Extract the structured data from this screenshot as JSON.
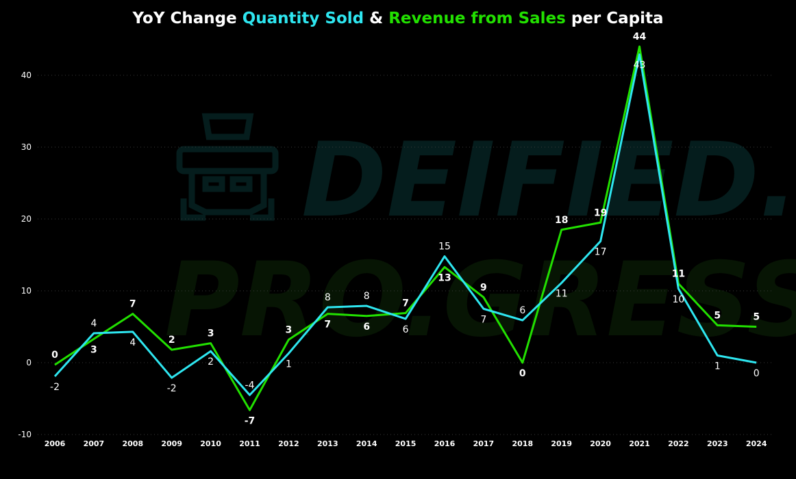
{
  "title": {
    "prefix": "YoY Change ",
    "part1": "Quantity Sold",
    "mid": " & ",
    "part2": "Revenue from Sales",
    "suffix": " per Capita"
  },
  "watermark": {
    "line1": "DEIFIED.",
    "line2": "PRO.GRESS"
  },
  "colors": {
    "quantity": "#2ee6f0",
    "revenue": "#22e000",
    "background": "#000000",
    "text": "#ffffff"
  },
  "chart_data": {
    "type": "line",
    "categories": [
      "2006",
      "2007",
      "2008",
      "2009",
      "2010",
      "2011",
      "2012",
      "2013",
      "2014",
      "2015",
      "2016",
      "2017",
      "2018",
      "2019",
      "2020",
      "2021",
      "2022",
      "2023",
      "2024"
    ],
    "ylim": [
      -10,
      45
    ],
    "yticks": [
      -10,
      0,
      10,
      20,
      30,
      40
    ],
    "grid": true,
    "series": [
      {
        "name": "Quantity Sold",
        "values": [
          -1.9,
          4.1,
          4.3,
          -2.1,
          1.6,
          -4.5,
          1.3,
          7.7,
          7.9,
          6.1,
          14.8,
          7.5,
          5.9,
          11.1,
          16.9,
          42.9,
          10.3,
          1.0,
          0.0
        ],
        "labels": [
          "-2",
          "4",
          "4",
          "-2",
          "2",
          "-4",
          "1",
          "8",
          "8",
          "6",
          "15",
          "7",
          "6",
          "11",
          "17",
          "43",
          "10",
          "1",
          "0"
        ]
      },
      {
        "name": "Revenue from Sales",
        "values": [
          -0.3,
          3.3,
          6.8,
          1.8,
          2.7,
          -6.6,
          3.2,
          6.8,
          6.5,
          6.9,
          13.3,
          9.1,
          0.0,
          18.5,
          19.5,
          44.0,
          11.0,
          5.2,
          5.0
        ],
        "labels": [
          "0",
          "3",
          "7",
          "2",
          "3",
          "-7",
          "3",
          "7",
          "6",
          "7",
          "13",
          "9",
          "0",
          "18",
          "19",
          "44",
          "11",
          "5",
          "5"
        ]
      }
    ]
  }
}
